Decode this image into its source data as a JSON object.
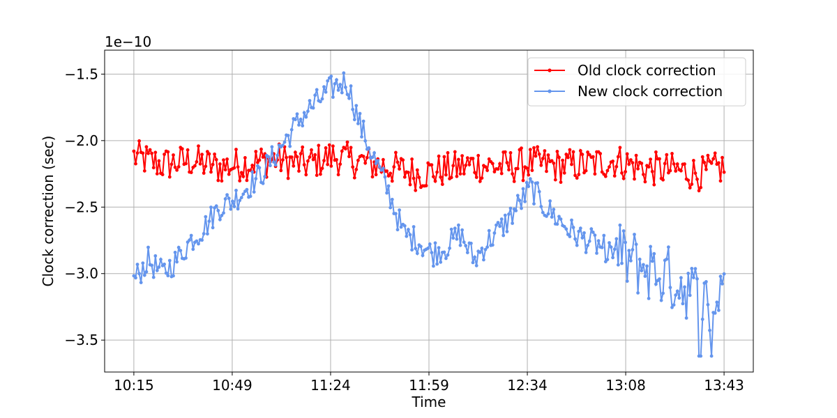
{
  "chart_data": {
    "type": "line",
    "xlabel": "Time",
    "ylabel": "Clock correction (sec)",
    "y_scale_label": "1e−10",
    "x_ticks": [
      "10:15",
      "10:49",
      "11:24",
      "11:59",
      "12:34",
      "13:08",
      "13:43"
    ],
    "x_range_minutes": [
      -10.3,
      218.3
    ],
    "y_ticks": [
      -3.5,
      -3.0,
      -2.5,
      -2.0,
      -1.5
    ],
    "y_tick_labels": [
      "−3.5",
      "−3.0",
      "−2.5",
      "−2.0",
      "−1.5"
    ],
    "ylim": [
      -3.74,
      -1.32
    ],
    "grid": true,
    "legend_position": "top-right",
    "series": [
      {
        "name": "Old clock correction",
        "color": "#ff0000",
        "x_minutes": [
          0,
          10,
          20,
          30,
          40,
          50,
          60,
          70,
          80,
          90,
          100,
          110,
          120,
          130,
          140,
          150,
          160,
          170,
          180,
          190,
          200,
          208
        ],
        "values": [
          -2.12,
          -2.18,
          -2.15,
          -2.2,
          -2.17,
          -2.14,
          -2.18,
          -2.12,
          -2.16,
          -2.2,
          -2.25,
          -2.22,
          -2.18,
          -2.2,
          -2.17,
          -2.19,
          -2.18,
          -2.15,
          -2.21,
          -2.22,
          -2.25,
          -2.2
        ]
      },
      {
        "name": "New clock correction",
        "color": "#6495ed",
        "x_minutes": [
          0,
          5,
          10,
          15,
          20,
          25,
          30,
          35,
          40,
          45,
          50,
          55,
          60,
          65,
          70,
          75,
          80,
          85,
          90,
          95,
          100,
          105,
          110,
          115,
          120,
          125,
          130,
          135,
          140,
          145,
          150,
          155,
          160,
          165,
          170,
          175,
          180,
          185,
          190,
          195,
          200,
          205,
          208
        ],
        "values": [
          -3.05,
          -2.9,
          -3.0,
          -2.9,
          -2.75,
          -2.65,
          -2.5,
          -2.45,
          -2.35,
          -2.25,
          -2.1,
          -1.95,
          -1.8,
          -1.7,
          -1.6,
          -1.55,
          -1.9,
          -2.15,
          -2.4,
          -2.7,
          -2.75,
          -2.85,
          -2.8,
          -2.7,
          -2.9,
          -2.75,
          -2.65,
          -2.5,
          -2.35,
          -2.5,
          -2.6,
          -2.7,
          -2.75,
          -2.8,
          -2.85,
          -2.9,
          -2.95,
          -3.0,
          -3.05,
          -3.1,
          -3.2,
          -3.3,
          -2.9
        ]
      }
    ]
  }
}
